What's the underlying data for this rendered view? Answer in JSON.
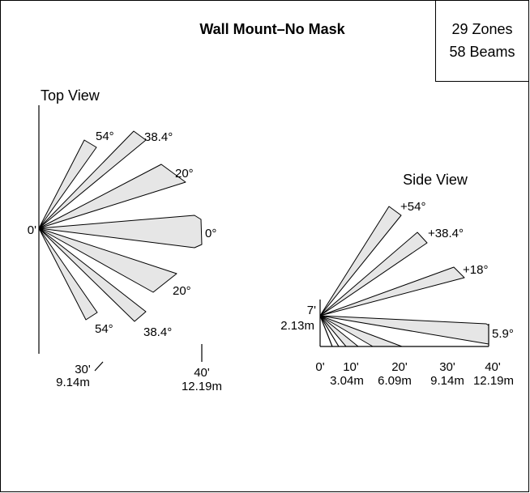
{
  "title": "Wall Mount–No Mask",
  "summary": {
    "zones": "29 Zones",
    "beams": "58 Beams"
  },
  "top_view": {
    "label": "Top View",
    "origin": "0'",
    "beams": [
      "54°",
      "38.4°",
      "20°",
      "0°",
      "20°",
      "38.4°",
      "54°"
    ],
    "distances": [
      {
        "feet": "30'",
        "meters": "9.14m"
      },
      {
        "feet": "40'",
        "meters": "12.19m"
      }
    ]
  },
  "side_view": {
    "label": "Side View",
    "beams": [
      "+54°",
      "+38.4°",
      "+18°",
      "5.9°"
    ],
    "height": {
      "feet": "7'",
      "meters": "2.13m"
    },
    "distances": [
      {
        "feet": "0'"
      },
      {
        "feet": "10'",
        "meters": "3.04m"
      },
      {
        "feet": "20'",
        "meters": "6.09m"
      },
      {
        "feet": "30'",
        "meters": "9.14m"
      },
      {
        "feet": "40'",
        "meters": "12.19m"
      }
    ]
  }
}
